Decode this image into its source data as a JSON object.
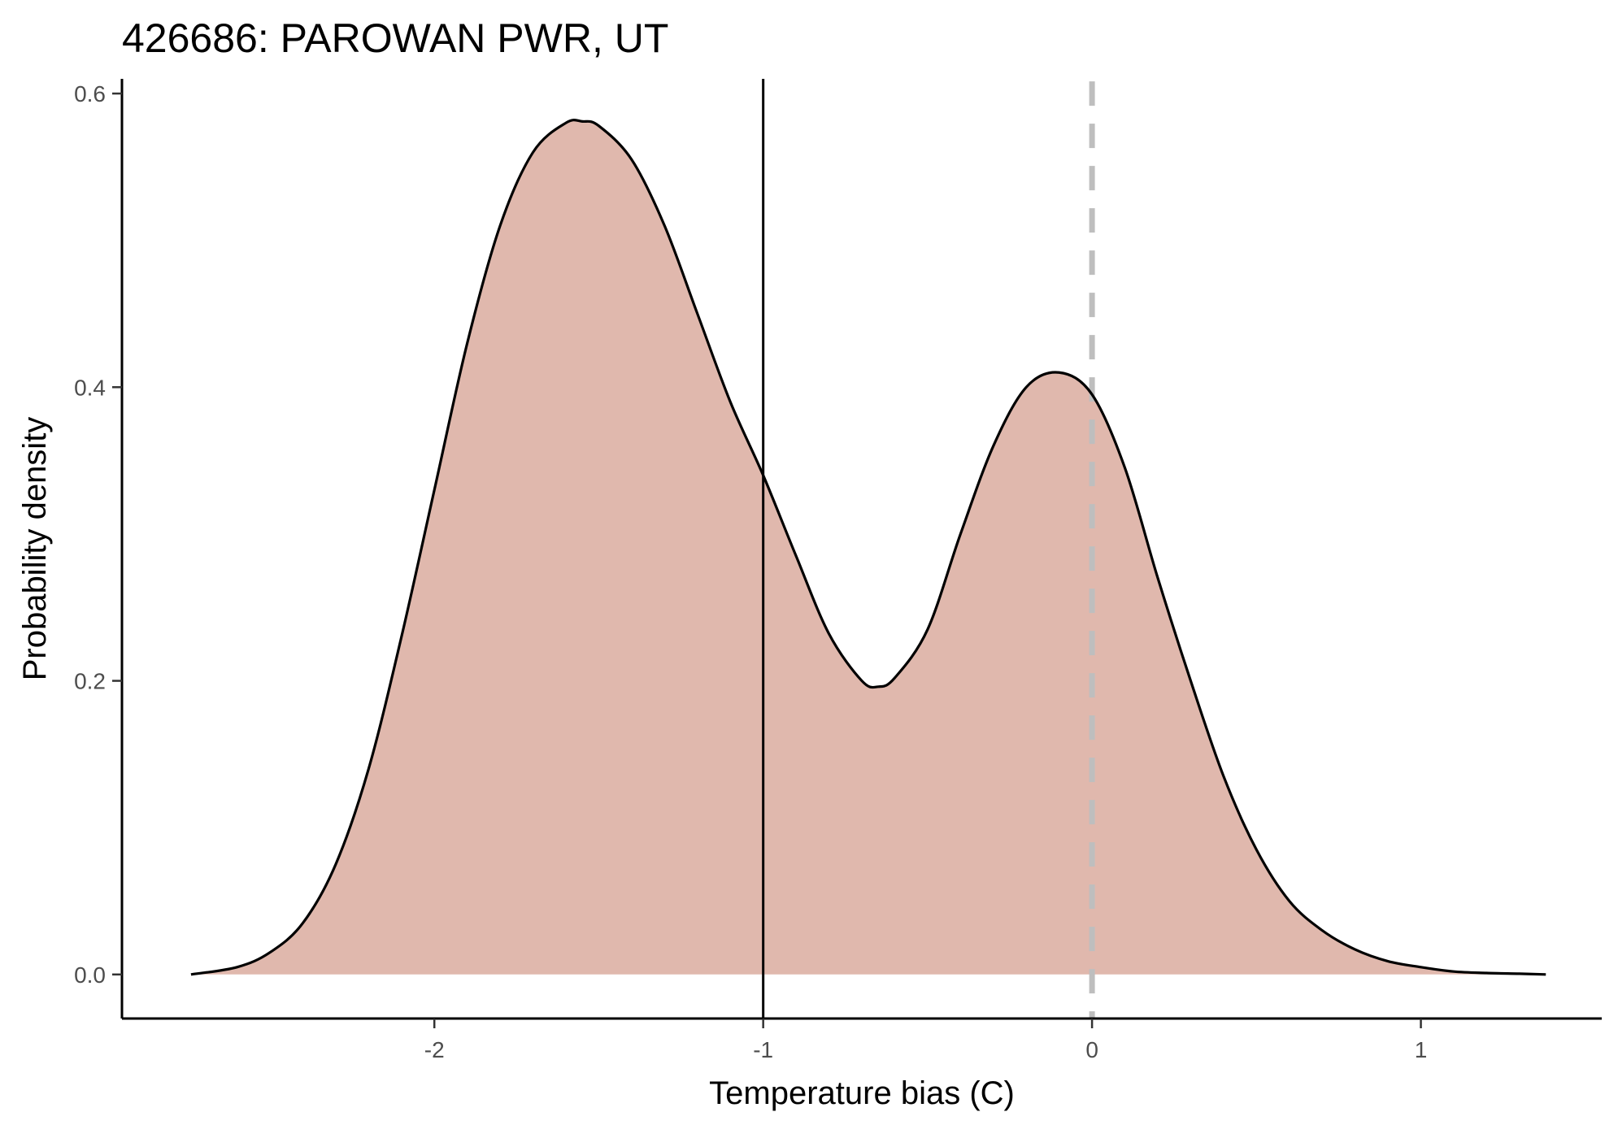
{
  "chart_data": {
    "type": "area",
    "title": "426686: PAROWAN PWR, UT",
    "xlabel": "Temperature bias (C)",
    "ylabel": "Probability density",
    "xlim": [
      -2.95,
      1.55
    ],
    "ylim": [
      -0.03,
      0.61
    ],
    "x_ticks": [
      -2,
      -1,
      0,
      1
    ],
    "x_tick_labels": [
      "-2",
      "-1",
      "0",
      "1"
    ],
    "y_ticks": [
      0.0,
      0.2,
      0.4,
      0.6
    ],
    "y_tick_labels": [
      "0.0",
      "0.2",
      "0.4",
      "0.6"
    ],
    "grid": false,
    "legend": "none",
    "fill_color": "#e0b8ad",
    "line_color": "#000000",
    "series": [
      {
        "x": [
          -2.74,
          -2.6,
          -2.5,
          -2.4,
          -2.3,
          -2.2,
          -2.1,
          -2.0,
          -1.9,
          -1.8,
          -1.7,
          -1.6,
          -1.55,
          -1.5,
          -1.4,
          -1.3,
          -1.2,
          -1.1,
          -1.0,
          -0.9,
          -0.8,
          -0.7,
          -0.65,
          -0.6,
          -0.5,
          -0.4,
          -0.3,
          -0.2,
          -0.1,
          0.0,
          0.1,
          0.2,
          0.3,
          0.4,
          0.5,
          0.6,
          0.7,
          0.8,
          0.9,
          1.0,
          1.1,
          1.2,
          1.3,
          1.38
        ],
        "y": [
          0.0,
          0.005,
          0.015,
          0.035,
          0.075,
          0.14,
          0.23,
          0.33,
          0.43,
          0.51,
          0.56,
          0.58,
          0.581,
          0.578,
          0.555,
          0.51,
          0.45,
          0.39,
          0.34,
          0.285,
          0.232,
          0.2,
          0.196,
          0.202,
          0.235,
          0.3,
          0.36,
          0.4,
          0.41,
          0.395,
          0.345,
          0.27,
          0.2,
          0.135,
          0.085,
          0.05,
          0.03,
          0.017,
          0.009,
          0.005,
          0.002,
          0.001,
          0.0005,
          0.0
        ]
      }
    ],
    "reference_lines": [
      {
        "x": -1.0,
        "style": "solid",
        "color": "#000000"
      },
      {
        "x": 0.0,
        "style": "dashed",
        "color": "#bebebe"
      }
    ]
  }
}
